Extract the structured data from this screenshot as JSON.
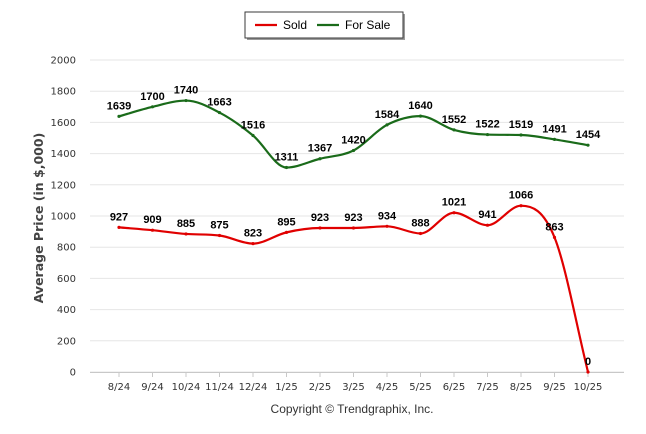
{
  "chart_data": {
    "type": "line",
    "title": "",
    "xlabel": "",
    "ylabel": "Average Price (in $,000)",
    "ylim": [
      0,
      2000
    ],
    "yticks": [
      0,
      200,
      400,
      600,
      800,
      1000,
      1200,
      1400,
      1600,
      1800,
      2000
    ],
    "categories": [
      "8/24",
      "9/24",
      "10/24",
      "11/24",
      "12/24",
      "1/25",
      "2/25",
      "3/25",
      "4/25",
      "5/25",
      "6/25",
      "7/25",
      "8/25",
      "9/25",
      "10/25"
    ],
    "legend_position": "top-center",
    "grid": true,
    "series": [
      {
        "name": "Sold",
        "color": "#e00000",
        "values": [
          927,
          909,
          885,
          875,
          823,
          895,
          923,
          923,
          934,
          888,
          1021,
          941,
          1066,
          863,
          0
        ]
      },
      {
        "name": "For Sale",
        "color": "#1a6b1a",
        "values": [
          1639,
          1700,
          1740,
          1663,
          1516,
          1311,
          1367,
          1420,
          1584,
          1640,
          1552,
          1522,
          1519,
          1491,
          1454
        ]
      }
    ]
  },
  "credit": "Copyright © Trendgraphix, Inc."
}
